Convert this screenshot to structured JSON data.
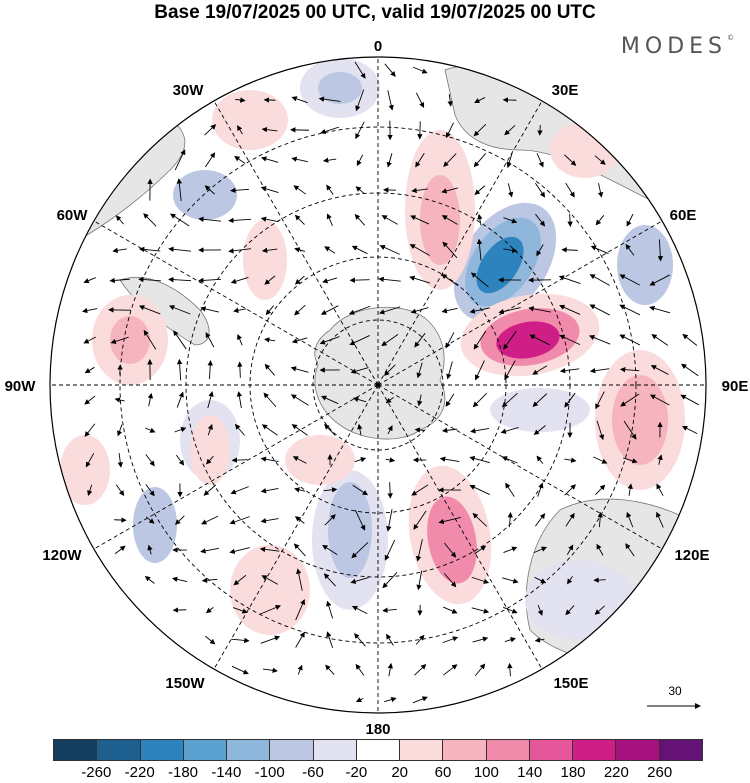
{
  "title": "Base 19/07/2025 00 UTC, valid 19/07/2025 00 UTC",
  "brand": "MODES",
  "brand_mark": "©",
  "map": {
    "projection": "south-polar-stereographic",
    "longitude_labels": {
      "lon_0": "0",
      "lon_30e": "30E",
      "lon_60e": "60E",
      "lon_90e": "90E",
      "lon_120e": "120E",
      "lon_150e": "150E",
      "lon_180": "180",
      "lon_150w": "150W",
      "lon_120w": "120W",
      "lon_90w": "90W",
      "lon_60w": "60W",
      "lon_30w": "30W"
    },
    "vector_reference": "30"
  },
  "colorbar": {
    "colors": [
      "#143d5e",
      "#1d5f8f",
      "#2d83bd",
      "#5aa1cf",
      "#8fb6db",
      "#bcc7e4",
      "#e3e2f1",
      "#ffffff",
      "#fbdcdd",
      "#f6b4be",
      "#f08bac",
      "#e5569a",
      "#cf1f87",
      "#a5127f",
      "#651277"
    ],
    "ticks": [
      "-260",
      "-220",
      "-180",
      "-140",
      "-100",
      "-60",
      "-20",
      "20",
      "60",
      "100",
      "140",
      "180",
      "220",
      "260"
    ]
  }
}
